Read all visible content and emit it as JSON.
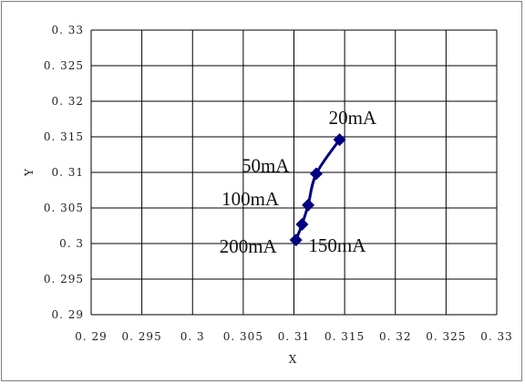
{
  "chart_data": {
    "type": "scatter",
    "title": "",
    "xlabel": "X",
    "ylabel": "Y",
    "xlim": [
      0.29,
      0.33
    ],
    "ylim": [
      0.29,
      0.33
    ],
    "x_ticks": [
      0.29,
      0.295,
      0.3,
      0.305,
      0.31,
      0.315,
      0.32,
      0.325,
      0.33
    ],
    "y_ticks": [
      0.29,
      0.295,
      0.3,
      0.305,
      0.31,
      0.315,
      0.32,
      0.325,
      0.33
    ],
    "x_tick_labels": [
      "0. 29",
      "0. 295",
      "0. 3",
      "0. 305",
      "0. 31",
      "0. 315",
      "0. 32",
      "0. 325",
      "0. 33"
    ],
    "y_tick_labels": [
      "0. 29",
      "0. 295",
      "0. 3",
      "0. 305",
      "0. 31",
      "0. 315",
      "0. 32",
      "0. 325",
      "0. 33"
    ],
    "grid": true,
    "legend": "none",
    "series_color": "#000080",
    "series": [
      {
        "points": [
          {
            "x": 0.3145,
            "y": 0.3146,
            "label": "20mA"
          },
          {
            "x": 0.3122,
            "y": 0.3098,
            "label": "50mA"
          },
          {
            "x": 0.3114,
            "y": 0.3054,
            "label": "100mA"
          },
          {
            "x": 0.3108,
            "y": 0.3027,
            "label": "150mA"
          },
          {
            "x": 0.3102,
            "y": 0.3005,
            "label": "200mA"
          }
        ]
      }
    ]
  }
}
